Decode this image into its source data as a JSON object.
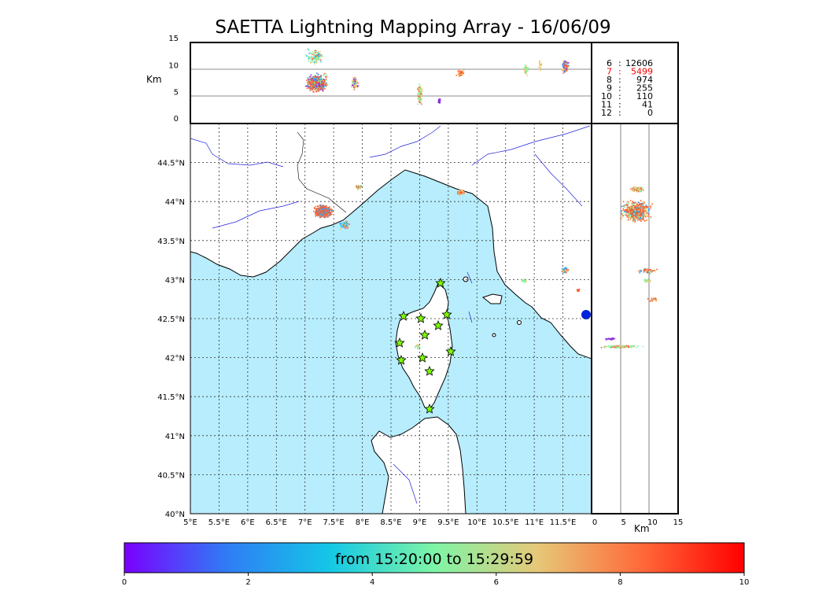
{
  "title": "SAETTA Lightning Mapping Array - 16/06/09",
  "altitude_axis": {
    "label": "Km",
    "ticks": [
      "15",
      "10",
      "5",
      "0"
    ],
    "bottom_ticks": [
      "0",
      "5",
      "10",
      "15"
    ]
  },
  "longitude_ticks": [
    "5°E",
    "5.5°E",
    "6°E",
    "6.5°E",
    "7°E",
    "7.5°E",
    "8°E",
    "8.5°E",
    "9°E",
    "9.5°E",
    "10°E",
    "10.5°E",
    "11°E",
    "11.5°E"
  ],
  "latitude_ticks": [
    "44.5°N",
    "44°N",
    "43.5°N",
    "43°N",
    "42.5°N",
    "42°N",
    "41.5°N",
    "41°N",
    "40.5°N",
    "40°N"
  ],
  "station_counts": [
    {
      "stations": "6",
      "count": "12606",
      "color": "#000000"
    },
    {
      "stations": "7",
      "count": "5499",
      "color": "#ff0000"
    },
    {
      "stations": "8",
      "count": "974",
      "color": "#000000"
    },
    {
      "stations": "9",
      "count": "255",
      "color": "#000000"
    },
    {
      "stations": "10",
      "count": "110",
      "color": "#000000"
    },
    {
      "stations": "11",
      "count": "41",
      "color": "#000000"
    },
    {
      "stations": "12",
      "count": "0",
      "color": "#000000"
    }
  ],
  "colorbar": {
    "label": "from 15:20:00 to 15:29:59",
    "ticks": [
      "0",
      "2",
      "4",
      "6",
      "8",
      "10"
    ],
    "colors": [
      "#7a00ff",
      "#2f7df5",
      "#14c8e6",
      "#7ef5a6",
      "#e6c878",
      "#ff6a3a",
      "#ff0000"
    ]
  },
  "map_colors": {
    "sea": "#b7edfc",
    "land": "#ffffff",
    "rivers": "#2222dd",
    "stations": "#7cfc00"
  },
  "lightning_stations_count": 12
}
